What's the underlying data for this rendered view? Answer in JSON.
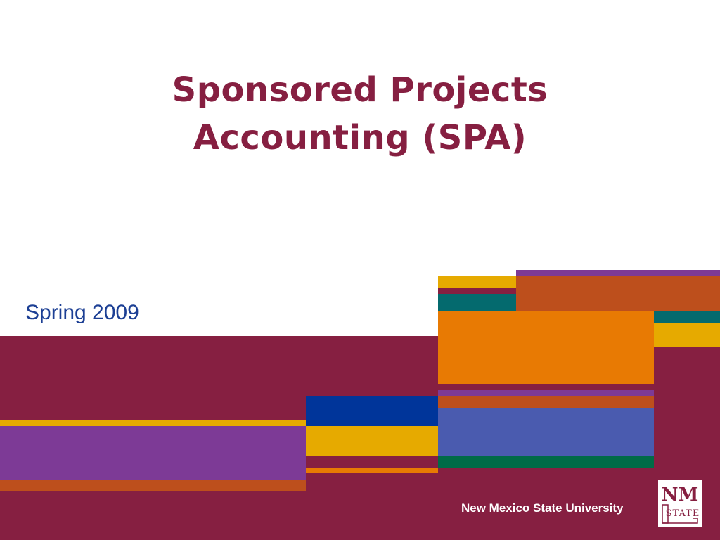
{
  "slide": {
    "title_line1": "Sponsored Projects",
    "title_line2": "Accounting (SPA)",
    "subtitle": "Spring 2009",
    "footer_text": "New Mexico State University",
    "logo_text": "NM STATE"
  },
  "colors": {
    "crimson": "#861f41",
    "purple": "#7d3a96",
    "rust": "#bd4f1c",
    "gold": "#e6aa00",
    "orange": "#e87a03",
    "teal": "#046a6e",
    "navy": "#00359a",
    "periwinkle": "#4a5baf",
    "green": "#006b47",
    "title_color": "#861f41",
    "subtitle_color": "#1c3f94"
  }
}
